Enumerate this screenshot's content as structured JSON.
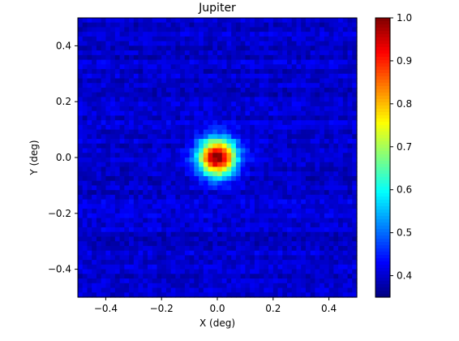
{
  "chart_data": {
    "type": "heatmap",
    "title": "Jupiter",
    "xlabel": "X (deg)",
    "ylabel": "Y (deg)",
    "xlim": [
      -0.5,
      0.5
    ],
    "ylim": [
      -0.5,
      0.5
    ],
    "x_ticks": [
      {
        "value": -0.4,
        "label": "−0.4"
      },
      {
        "value": -0.2,
        "label": "−0.2"
      },
      {
        "value": 0.0,
        "label": "0.0"
      },
      {
        "value": 0.2,
        "label": "0.2"
      },
      {
        "value": 0.4,
        "label": "0.4"
      }
    ],
    "y_ticks": [
      {
        "value": -0.4,
        "label": "−0.4"
      },
      {
        "value": -0.2,
        "label": "−0.2"
      },
      {
        "value": 0.0,
        "label": "0.0"
      },
      {
        "value": 0.2,
        "label": "0.2"
      },
      {
        "value": 0.4,
        "label": "0.4"
      }
    ],
    "grid": false,
    "colormap": "jet",
    "colorbar": {
      "range": [
        0.35,
        1.0
      ],
      "ticks": [
        {
          "value": 0.4,
          "label": "0.4"
        },
        {
          "value": 0.5,
          "label": "0.5"
        },
        {
          "value": 0.6,
          "label": "0.6"
        },
        {
          "value": 0.7,
          "label": "0.7"
        },
        {
          "value": 0.8,
          "label": "0.8"
        },
        {
          "value": 0.9,
          "label": "0.9"
        },
        {
          "value": 1.0,
          "label": "1.0"
        }
      ]
    },
    "source": {
      "x": 0.0,
      "y": 0.0,
      "peak": 1.0,
      "background": 0.4,
      "fwhm_deg": 0.11
    },
    "grid_resolution": 60
  }
}
